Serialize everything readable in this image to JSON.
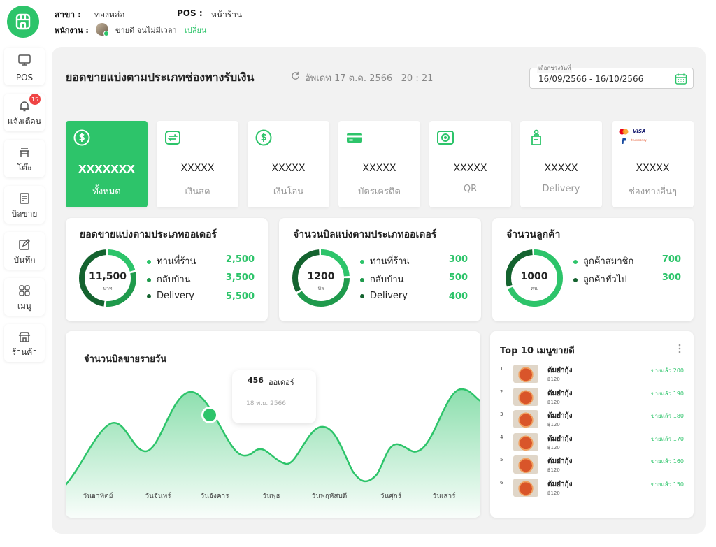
{
  "header": {
    "branch_label": "สาขา :",
    "branch_value": "ทองหล่อ",
    "pos_label": "POS :",
    "pos_value": "หน้าร้าน",
    "staff_label": "พนักงาน :",
    "staff_name": "ขายดี จนไม่มีเวลา",
    "change_link": "เปลี่ยน"
  },
  "sidebar": {
    "items": [
      {
        "label": "POS",
        "icon": "monitor-icon"
      },
      {
        "label": "แจ้งเตือน",
        "icon": "bell-icon",
        "badge": "15"
      },
      {
        "label": "โต๊ะ",
        "icon": "table-icon"
      },
      {
        "label": "บิลขาย",
        "icon": "receipt-icon"
      },
      {
        "label": "บันทึก",
        "icon": "edit-icon"
      },
      {
        "label": "เมนู",
        "icon": "grid-icon"
      },
      {
        "label": "ร้านค้า",
        "icon": "store-icon"
      }
    ]
  },
  "main": {
    "title": "ยอดขายแบ่งตามประเภทช่องทางรับเงิน",
    "updated": "อัพเดท 17 ต.ค. 2566   20 : 21",
    "date_legend": "เลือกช่วงวันที่",
    "date_range": "16/09/2566 - 16/10/2566"
  },
  "payment_cards": [
    {
      "value": "XXXXXXX",
      "label": "ทั้งหมด",
      "icon": "dollar-coin-icon"
    },
    {
      "value": "XXXXX",
      "label": "เงินสด",
      "icon": "cash-transfer-icon"
    },
    {
      "value": "XXXXX",
      "label": "เงินโอน",
      "icon": "dollar-coin-icon"
    },
    {
      "value": "XXXXX",
      "label": "บัตรเครดิต",
      "icon": "credit-card-icon"
    },
    {
      "value": "XXXXX",
      "label": "QR",
      "icon": "qr-scan-icon"
    },
    {
      "value": "XXXXX",
      "label": "Delivery",
      "icon": "delivery-bag-icon"
    },
    {
      "value": "XXXXX",
      "label": "ช่องทางอื่นๆ",
      "icon": "payment-logos-icon",
      "logos": [
        "VISA",
        "truemoney"
      ]
    }
  ],
  "stats": [
    {
      "title": "ยอดขายแบ่งตามประเภทออเดอร์",
      "center": "11,500",
      "unit": "บาท",
      "rows": [
        {
          "label": "ทานที่ร้าน",
          "value": "2,500"
        },
        {
          "label": "กลับบ้าน",
          "value": "3,500"
        },
        {
          "label": "Delivery",
          "value": "5,500"
        }
      ],
      "fractions": [
        0.217,
        0.304,
        0.478
      ]
    },
    {
      "title": "จำนวนบิลแบ่งตามประเภทออเดอร์",
      "center": "1200",
      "unit": "บิล",
      "rows": [
        {
          "label": "ทานที่ร้าน",
          "value": "300"
        },
        {
          "label": "กลับบ้าน",
          "value": "500"
        },
        {
          "label": "Delivery",
          "value": "400"
        }
      ],
      "fractions": [
        0.25,
        0.417,
        0.333
      ]
    },
    {
      "title": "จำนวนลูกค้า",
      "center": "1000",
      "unit": "คน",
      "rows": [
        {
          "label": "ลูกค้าสมาชิก",
          "value": "700"
        },
        {
          "label": "ลูกค้าทั่วไป",
          "value": "300"
        }
      ],
      "fractions": [
        0.7,
        0.3
      ]
    }
  ],
  "colors": {
    "accent": "#2dc46a",
    "dark_green": "#14632f",
    "mid_green": "#1f9a4c",
    "light_green": "#2dc46a"
  },
  "daily_chart": {
    "title": "จำนวนบิลขายรายวัน",
    "tooltip_value": "456",
    "tooltip_unit": "ออเดอร์",
    "tooltip_date": "18 พ.ย. 2566"
  },
  "chart_data": {
    "type": "area",
    "categories": [
      "วันอาทิตย์",
      "วันจันทร์",
      "วันอังคาร",
      "วันพุธ",
      "วันพฤหัสบดี",
      "วันศุกร์",
      "วันเสาร์"
    ],
    "values": [
      280,
      320,
      456,
      300,
      260,
      340,
      380
    ],
    "highlight_index": 2,
    "grid": false,
    "legend": "none"
  },
  "top10": {
    "title": "Top 10 เมนูขายดี",
    "items": [
      {
        "rank": "1",
        "name": "ต้มยำกุ้ง",
        "price": "฿120",
        "sold": "ขายแล้ว 200"
      },
      {
        "rank": "2",
        "name": "ต้มยำกุ้ง",
        "price": "฿120",
        "sold": "ขายแล้ว 190"
      },
      {
        "rank": "3",
        "name": "ต้มยำกุ้ง",
        "price": "฿120",
        "sold": "ขายแล้ว 180"
      },
      {
        "rank": "4",
        "name": "ต้มยำกุ้ง",
        "price": "฿120",
        "sold": "ขายแล้ว 170"
      },
      {
        "rank": "5",
        "name": "ต้มยำกุ้ง",
        "price": "฿120",
        "sold": "ขายแล้ว 160"
      },
      {
        "rank": "6",
        "name": "ต้มยำกุ้ง",
        "price": "฿120",
        "sold": "ขายแล้ว 150"
      }
    ]
  }
}
